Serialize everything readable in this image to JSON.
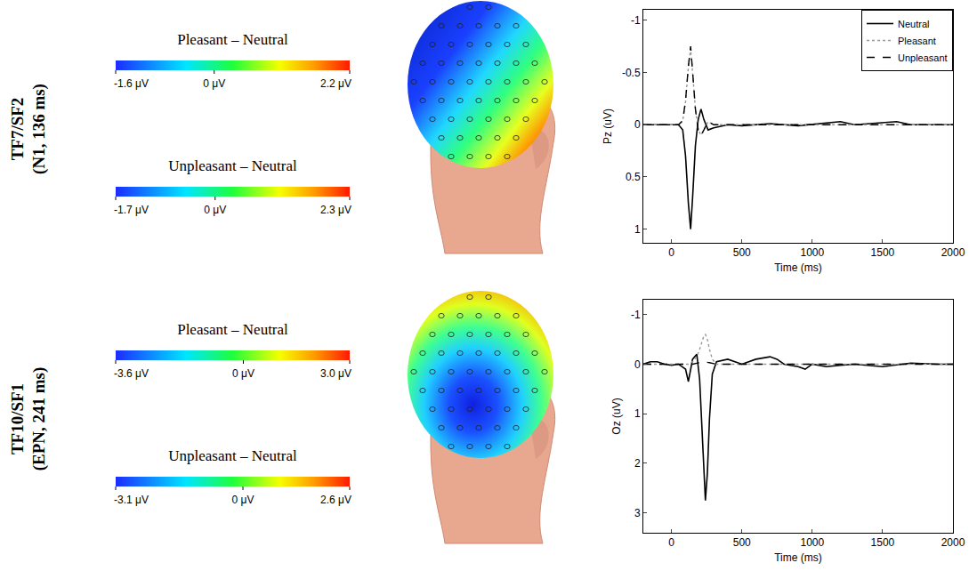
{
  "panels": [
    {
      "row_label": [
        "TF7/SF2",
        "(N1, 136 ms)"
      ],
      "colorbars": [
        {
          "title": "Pleasant – Neutral",
          "range": [
            -1.6,
            2.2
          ],
          "ticks": [
            {
              "value": -1.6,
              "label": "-1.6 μV"
            },
            {
              "value": 0,
              "label": "0 μV"
            },
            {
              "value": 2.2,
              "label": "2.2 μV"
            }
          ]
        },
        {
          "title": "Unpleasant – Neutral",
          "range": [
            -1.7,
            2.3
          ],
          "ticks": [
            {
              "value": -1.7,
              "label": "-1.7 μV"
            },
            {
              "value": 0,
              "label": "0 μV"
            },
            {
              "value": 2.3,
              "label": "2.3 μV"
            }
          ]
        }
      ]
    },
    {
      "row_label": [
        "TF10/SF1",
        "(EPN, 241 ms)"
      ],
      "colorbars": [
        {
          "title": "Pleasant – Neutral",
          "range": [
            -3.6,
            3.0
          ],
          "ticks": [
            {
              "value": -3.6,
              "label": "-3.6 μV"
            },
            {
              "value": 0,
              "label": "0 μV"
            },
            {
              "value": 3.0,
              "label": "3.0 μV"
            }
          ]
        },
        {
          "title": "Unpleasant – Neutral",
          "range": [
            -3.1,
            2.6
          ],
          "ticks": [
            {
              "value": -3.1,
              "label": "-3.1 μV"
            },
            {
              "value": 0,
              "label": "0 μV"
            },
            {
              "value": 2.6,
              "label": "2.6 μV"
            }
          ]
        }
      ]
    }
  ],
  "chart_data": [
    {
      "type": "line",
      "x_label": "Time (ms)",
      "y_label": "Pz (uV)",
      "x": [
        -200,
        -100,
        0,
        50,
        80,
        100,
        120,
        136,
        150,
        170,
        190,
        210,
        230,
        260,
        300,
        400,
        500,
        700,
        900,
        1200,
        1300,
        1600,
        1700,
        2000
      ],
      "series": [
        {
          "name": "Neutral",
          "color": "#000000",
          "line_style": "solid",
          "values": [
            0,
            0,
            0,
            0,
            0.05,
            0.3,
            0.75,
            1.0,
            0.7,
            0.2,
            -0.05,
            -0.15,
            -0.05,
            0.05,
            0.03,
            0,
            0.01,
            -0.01,
            0.01,
            -0.03,
            0,
            -0.03,
            0,
            0
          ]
        },
        {
          "name": "Pleasant",
          "color": "#999999",
          "line_style": "dot",
          "values": [
            0,
            0,
            0,
            0,
            -0.04,
            -0.22,
            -0.55,
            -0.73,
            -0.5,
            -0.15,
            0.05,
            0.1,
            0.05,
            -0.03,
            0,
            0,
            0,
            0,
            0,
            0,
            0,
            0,
            0,
            0
          ]
        },
        {
          "name": "Unpleasant",
          "color": "#000000",
          "line_style": "dash",
          "values": [
            0,
            0,
            0,
            0,
            -0.04,
            -0.23,
            -0.56,
            -0.75,
            -0.51,
            -0.15,
            0.05,
            0.1,
            0.05,
            -0.03,
            0,
            0,
            0,
            0,
            0,
            0,
            0,
            0,
            0,
            0
          ]
        }
      ],
      "xlim": [
        -200,
        2000
      ],
      "xticks": [
        0,
        500,
        1000,
        1500,
        2000
      ],
      "ylim": [
        1.13,
        -1.1
      ],
      "yticks": [
        -1,
        -0.5,
        0,
        0.5,
        1
      ],
      "legend": "upper right"
    },
    {
      "type": "line",
      "x_label": "Time (ms)",
      "y_label": "Oz (uV)",
      "x": [
        -200,
        -150,
        -100,
        -50,
        0,
        50,
        100,
        120,
        150,
        180,
        200,
        215,
        230,
        241,
        255,
        270,
        290,
        320,
        400,
        500,
        600,
        700,
        750,
        800,
        900,
        950,
        1000,
        1100,
        1200,
        1300,
        1500,
        1700,
        1900,
        2000
      ],
      "series": [
        {
          "name": "Neutral",
          "color": "#000000",
          "line_style": "solid",
          "values": [
            0,
            -0.05,
            -0.05,
            0,
            0.02,
            0,
            0.1,
            0.35,
            -0.1,
            -0.2,
            0.3,
            1.2,
            2.3,
            2.75,
            2.2,
            1.1,
            0.2,
            -0.05,
            -0.1,
            0,
            -0.1,
            -0.15,
            -0.1,
            0,
            0.05,
            0.1,
            0,
            0.05,
            0.02,
            0,
            0.05,
            -0.02,
            0,
            0
          ]
        },
        {
          "name": "Pleasant",
          "color": "#999999",
          "line_style": "dot",
          "values": [
            0,
            0,
            0,
            0,
            0,
            0,
            0,
            0,
            -0.05,
            -0.15,
            -0.3,
            -0.45,
            -0.57,
            -0.6,
            -0.5,
            -0.3,
            -0.1,
            0,
            0,
            0,
            0,
            0,
            0,
            0,
            0,
            0,
            0,
            0,
            0,
            0,
            0,
            0,
            0,
            0
          ]
        },
        {
          "name": "Unpleasant",
          "color": "#000000",
          "line_style": "dash",
          "values": [
            0,
            0,
            0,
            0,
            0,
            0,
            0,
            0,
            0,
            -0.02,
            -0.03,
            -0.04,
            -0.05,
            -0.05,
            -0.04,
            -0.03,
            -0.02,
            0,
            0,
            0,
            0,
            0,
            0,
            0,
            0,
            0,
            0,
            0,
            0,
            0,
            0,
            0,
            0,
            0
          ]
        }
      ],
      "xlim": [
        -200,
        2000
      ],
      "xticks": [
        0,
        500,
        1000,
        1500,
        2000
      ],
      "ylim": [
        3.4,
        -1.3
      ],
      "yticks": [
        -1,
        0,
        1,
        2,
        3
      ],
      "legend": "none"
    }
  ]
}
